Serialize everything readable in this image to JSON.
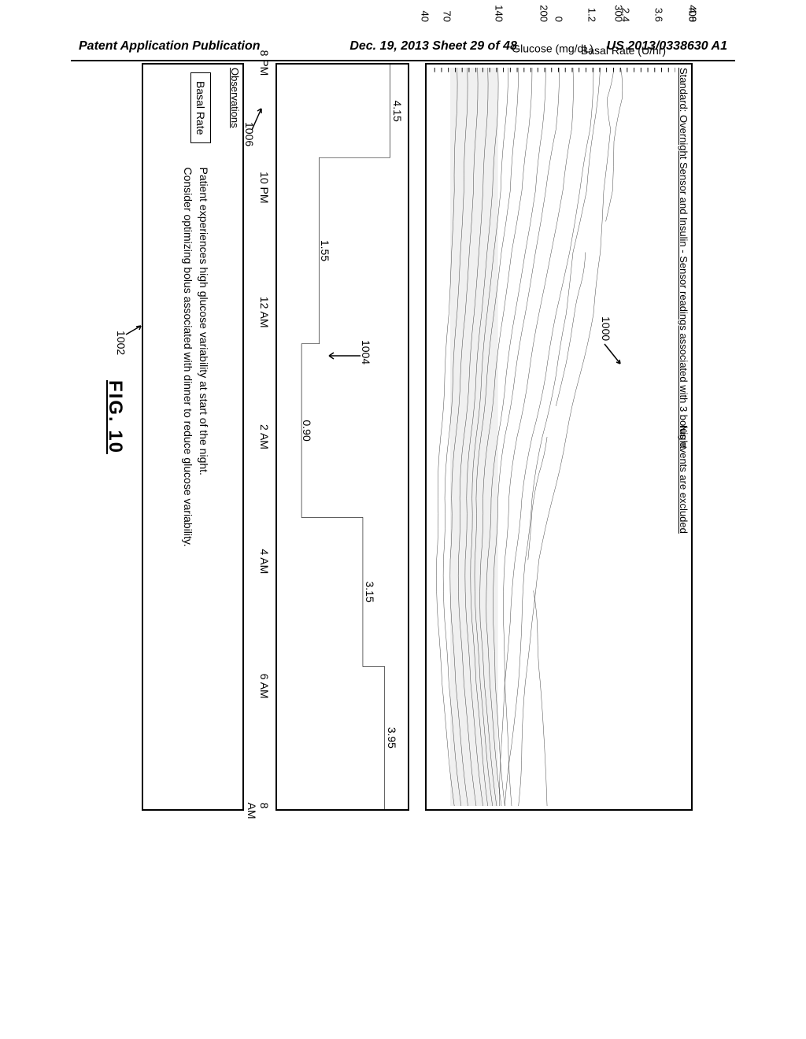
{
  "header": {
    "left": "Patent Application Publication",
    "center": "Dec. 19, 2013  Sheet 29 of 48",
    "right": "US 2013/0338630 A1"
  },
  "figure_label": "FIG. 10",
  "glucose": {
    "title": "Standard: Overnight Sensor and Insulin - Sensor readings associated with 3 bolus events are excluded",
    "subtitle": "Night",
    "y_label": "Glucose (mg/dL)",
    "y_ticks": [
      400,
      300,
      200,
      140,
      70,
      40
    ],
    "y_min": 40,
    "y_max": 400,
    "target_band": [
      70,
      140
    ],
    "traces": [
      [
        [
          0,
          310
        ],
        [
          0.5,
          300
        ],
        [
          1,
          305
        ],
        [
          2,
          295
        ],
        [
          3,
          290
        ],
        [
          4,
          280
        ],
        [
          5,
          260
        ],
        [
          6,
          240
        ],
        [
          7,
          220
        ],
        [
          8,
          200
        ],
        [
          9,
          190
        ],
        [
          10,
          180
        ],
        [
          11,
          175
        ],
        [
          12,
          170
        ]
      ],
      [
        [
          0,
          290
        ],
        [
          1,
          280
        ],
        [
          2,
          270
        ],
        [
          3,
          250
        ],
        [
          4,
          240
        ],
        [
          5,
          225
        ],
        [
          6,
          205
        ],
        [
          7,
          190
        ],
        [
          8,
          180
        ],
        [
          9,
          175
        ],
        [
          10,
          170
        ],
        [
          11,
          160
        ],
        [
          12,
          150
        ]
      ],
      [
        [
          0,
          280
        ],
        [
          1,
          275
        ],
        [
          2,
          260
        ],
        [
          3,
          245
        ],
        [
          4,
          225
        ],
        [
          5,
          210
        ],
        [
          6,
          190
        ],
        [
          7,
          175
        ],
        [
          8,
          165
        ],
        [
          9,
          158
        ],
        [
          10,
          150
        ],
        [
          11,
          145
        ],
        [
          12,
          142
        ]
      ],
      [
        [
          0,
          250
        ],
        [
          1,
          248
        ],
        [
          2,
          235
        ],
        [
          3,
          218
        ],
        [
          4,
          200
        ],
        [
          5,
          185
        ],
        [
          6,
          168
        ],
        [
          7,
          156
        ],
        [
          8,
          150
        ],
        [
          9,
          148
        ],
        [
          10,
          150
        ],
        [
          11,
          155
        ],
        [
          12,
          160
        ]
      ],
      [
        [
          0,
          230
        ],
        [
          1,
          225
        ],
        [
          2,
          210
        ],
        [
          3,
          195
        ],
        [
          4,
          180
        ],
        [
          5,
          165
        ],
        [
          6,
          150
        ],
        [
          7,
          140
        ],
        [
          8,
          135
        ],
        [
          9,
          133
        ],
        [
          10,
          136
        ],
        [
          11,
          142
        ],
        [
          12,
          150
        ]
      ],
      [
        [
          0,
          210
        ],
        [
          1,
          205
        ],
        [
          2,
          195
        ],
        [
          3,
          180
        ],
        [
          4,
          165
        ],
        [
          5,
          152
        ],
        [
          6,
          140
        ],
        [
          7,
          130
        ],
        [
          8,
          125
        ],
        [
          9,
          123
        ],
        [
          10,
          128
        ],
        [
          11,
          135
        ],
        [
          12,
          145
        ]
      ],
      [
        [
          0,
          190
        ],
        [
          1,
          185
        ],
        [
          2,
          175
        ],
        [
          3,
          160
        ],
        [
          4,
          148
        ],
        [
          5,
          136
        ],
        [
          6,
          126
        ],
        [
          7,
          118
        ],
        [
          8,
          115
        ],
        [
          9,
          114
        ],
        [
          10,
          120
        ],
        [
          11,
          128
        ],
        [
          12,
          138
        ]
      ],
      [
        [
          0,
          170
        ],
        [
          1,
          165
        ],
        [
          2,
          158
        ],
        [
          3,
          145
        ],
        [
          4,
          134
        ],
        [
          5,
          124
        ],
        [
          6,
          115
        ],
        [
          7,
          108
        ],
        [
          8,
          106
        ],
        [
          9,
          108
        ],
        [
          10,
          114
        ],
        [
          11,
          122
        ],
        [
          12,
          132
        ]
      ],
      [
        [
          0,
          155
        ],
        [
          1,
          150
        ],
        [
          2,
          144
        ],
        [
          3,
          134
        ],
        [
          4,
          124
        ],
        [
          5,
          116
        ],
        [
          6,
          108
        ],
        [
          7,
          102
        ],
        [
          8,
          100
        ],
        [
          9,
          102
        ],
        [
          10,
          108
        ],
        [
          11,
          116
        ],
        [
          12,
          125
        ]
      ],
      [
        [
          0,
          140
        ],
        [
          1,
          138
        ],
        [
          2,
          132
        ],
        [
          3,
          124
        ],
        [
          4,
          116
        ],
        [
          5,
          108
        ],
        [
          6,
          100
        ],
        [
          7,
          94
        ],
        [
          8,
          92
        ],
        [
          9,
          94
        ],
        [
          10,
          100
        ],
        [
          11,
          108
        ],
        [
          12,
          118
        ]
      ],
      [
        [
          0,
          125
        ],
        [
          1,
          123
        ],
        [
          2,
          118
        ],
        [
          3,
          112
        ],
        [
          4,
          105
        ],
        [
          5,
          98
        ],
        [
          6,
          90
        ],
        [
          7,
          84
        ],
        [
          8,
          82
        ],
        [
          9,
          84
        ],
        [
          10,
          90
        ],
        [
          11,
          98
        ],
        [
          12,
          108
        ]
      ],
      [
        [
          0,
          110
        ],
        [
          1,
          108
        ],
        [
          2,
          104
        ],
        [
          3,
          98
        ],
        [
          4,
          92
        ],
        [
          5,
          85
        ],
        [
          6,
          78
        ],
        [
          7,
          72
        ],
        [
          8,
          70
        ],
        [
          9,
          72
        ],
        [
          10,
          78
        ],
        [
          11,
          86
        ],
        [
          12,
          96
        ]
      ],
      [
        [
          0,
          95
        ],
        [
          1,
          93
        ],
        [
          2,
          90
        ],
        [
          3,
          85
        ],
        [
          4,
          80
        ],
        [
          5,
          74
        ],
        [
          6,
          68
        ],
        [
          7,
          62
        ],
        [
          8,
          60
        ],
        [
          9,
          62
        ],
        [
          10,
          68
        ],
        [
          11,
          76
        ],
        [
          12,
          86
        ]
      ],
      [
        [
          0,
          80
        ],
        [
          1,
          78
        ],
        [
          2,
          76
        ],
        [
          3,
          72
        ],
        [
          4,
          68
        ],
        [
          5,
          62
        ],
        [
          6,
          56
        ],
        [
          7,
          52
        ],
        [
          8,
          50
        ],
        [
          9,
          52
        ],
        [
          10,
          58
        ],
        [
          11,
          66
        ],
        [
          12,
          76
        ]
      ],
      [
        [
          0,
          320
        ],
        [
          0.5,
          322
        ],
        [
          1.2,
          310
        ],
        [
          2,
          308
        ],
        [
          2.5,
          298
        ]
      ],
      [
        [
          3,
          268
        ],
        [
          3.5,
          262
        ],
        [
          4,
          252
        ],
        [
          4.8,
          240
        ],
        [
          5.5,
          225
        ]
      ],
      [
        [
          6,
          212
        ],
        [
          6.6,
          200
        ],
        [
          7.2,
          190
        ],
        [
          8,
          184
        ]
      ],
      [
        [
          8.5,
          192
        ],
        [
          9.2,
          198
        ],
        [
          10,
          202
        ],
        [
          11,
          208
        ],
        [
          12,
          212
        ]
      ]
    ],
    "line_color": "#000000",
    "line_width": 1.2,
    "background": "#ffffff"
  },
  "basal": {
    "y_label": "Basal Rate (U/hr)",
    "y_ticks": [
      4.8,
      3.6,
      2.4,
      1.2,
      0
    ],
    "y_min": 0,
    "y_max": 4.8,
    "x_ticks": [
      "8 PM",
      "10 PM",
      "12 AM",
      "2 AM",
      "4 AM",
      "6 AM",
      "8 AM"
    ],
    "x_hours": [
      0,
      2,
      4,
      6,
      8,
      10,
      12
    ],
    "segments": [
      {
        "start": 0,
        "end": 1.5,
        "rate": 4.15,
        "label": "4.15"
      },
      {
        "start": 1.5,
        "end": 4.5,
        "rate": 1.55,
        "label": "1.55"
      },
      {
        "start": 4.5,
        "end": 7.3,
        "rate": 0.9,
        "label": "0.90"
      },
      {
        "start": 7.3,
        "end": 9.7,
        "rate": 3.15,
        "label": "3.15"
      },
      {
        "start": 9.7,
        "end": 12,
        "rate": 3.95,
        "label": "3.95"
      }
    ],
    "ref_1004": "1004",
    "ref_1006": "1006",
    "line_color": "#000000",
    "line_width": 2
  },
  "observations": {
    "title": "Observations",
    "label": "Basal Rate",
    "text_line1": "Patient experiences high glucose variability at start of the night.",
    "text_line2": "Consider optimizing bolus associated with dinner to reduce glucose variability."
  },
  "callouts": {
    "ref_1000": "1000",
    "ref_1002": "1002"
  }
}
